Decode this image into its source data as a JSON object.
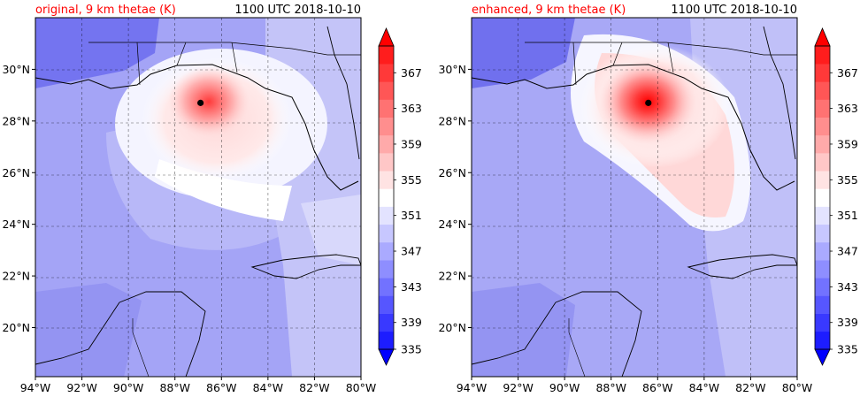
{
  "colors": {
    "title_left": "#ff0000",
    "cold": "#0000ff",
    "warm": "#ff0000",
    "land_border": "#000000",
    "grid": "#000000",
    "storm_center": "#000000"
  },
  "chart_data": [
    {
      "type": "heatmap",
      "title": "original, 9 km thetae (K)",
      "subtitle": "1100 UTC 2018-10-10",
      "x_ticks": [
        "94°W",
        "92°W",
        "90°W",
        "88°W",
        "86°W",
        "84°W",
        "82°W",
        "80°W"
      ],
      "y_ticks": [
        "30°N",
        "28°N",
        "26°N",
        "24°N",
        "22°N",
        "20°N"
      ],
      "x_range": [
        -94,
        -80
      ],
      "y_range": [
        18.1,
        32.0
      ],
      "grid": true,
      "storm_center": {
        "lon": -86.9,
        "lat": 28.7
      },
      "warm_core": {
        "lon": -86.7,
        "lat": 28.8,
        "peak_K": 362
      },
      "colorbar": {
        "min": 335,
        "max": 369,
        "step": 2,
        "tick_labels": [
          "335",
          "339",
          "343",
          "347",
          "351",
          "355",
          "359",
          "363",
          "367"
        ],
        "extend": "both",
        "placement": "right"
      }
    },
    {
      "type": "heatmap",
      "title": "enhanced, 9 km thetae (K)",
      "subtitle": "1100 UTC 2018-10-10",
      "x_ticks": [
        "94°W",
        "92°W",
        "90°W",
        "88°W",
        "86°W",
        "84°W",
        "82°W",
        "80°W"
      ],
      "y_ticks": [
        "30°N",
        "28°N",
        "26°N",
        "24°N",
        "22°N",
        "20°N"
      ],
      "x_range": [
        -94,
        -80
      ],
      "y_range": [
        18.1,
        32.0
      ],
      "grid": true,
      "storm_center": {
        "lon": -86.4,
        "lat": 28.7
      },
      "warm_core": {
        "lon": -86.4,
        "lat": 28.8,
        "peak_K": 369
      },
      "colorbar": {
        "min": 335,
        "max": 369,
        "step": 2,
        "tick_labels": [
          "335",
          "339",
          "343",
          "347",
          "351",
          "355",
          "359",
          "363",
          "367"
        ],
        "extend": "both",
        "placement": "right"
      }
    }
  ]
}
